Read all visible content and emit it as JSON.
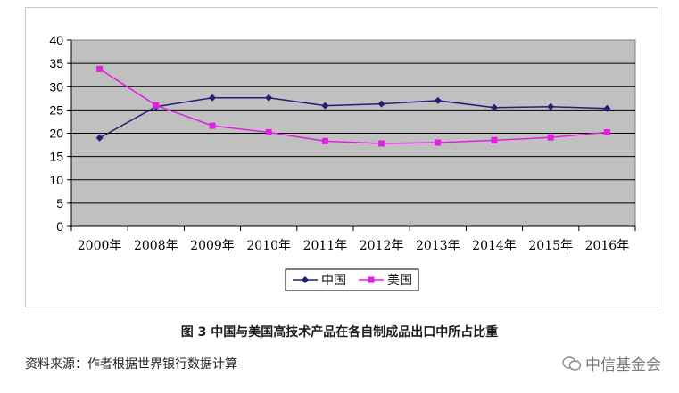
{
  "chart_data": {
    "type": "line",
    "categories": [
      "2000年",
      "2008年",
      "2009年",
      "2010年",
      "2011年",
      "2012年",
      "2013年",
      "2014年",
      "2015年",
      "2016年"
    ],
    "series": [
      {
        "name": "中国",
        "color": "#1f1f7a",
        "marker": "diamond",
        "values": [
          19.0,
          25.7,
          27.6,
          27.6,
          25.9,
          26.3,
          27.0,
          25.5,
          25.7,
          25.3
        ]
      },
      {
        "name": "美国",
        "color": "#e020e0",
        "marker": "square",
        "values": [
          33.8,
          26.0,
          21.6,
          20.2,
          18.3,
          17.8,
          18.0,
          18.5,
          19.1,
          20.2
        ]
      }
    ],
    "ylim": [
      0,
      40
    ],
    "yticks": [
      0,
      5,
      10,
      15,
      20,
      25,
      30,
      35,
      40
    ],
    "grid": true,
    "plot_background": "#c0c0c0",
    "legend_position": "bottom-center"
  },
  "caption": "图 3  中国与美国高技术产品在各自制成品出口中所占比重",
  "source": "资料来源：作者根据世界银行数据计算",
  "watermark": "中信基金会"
}
